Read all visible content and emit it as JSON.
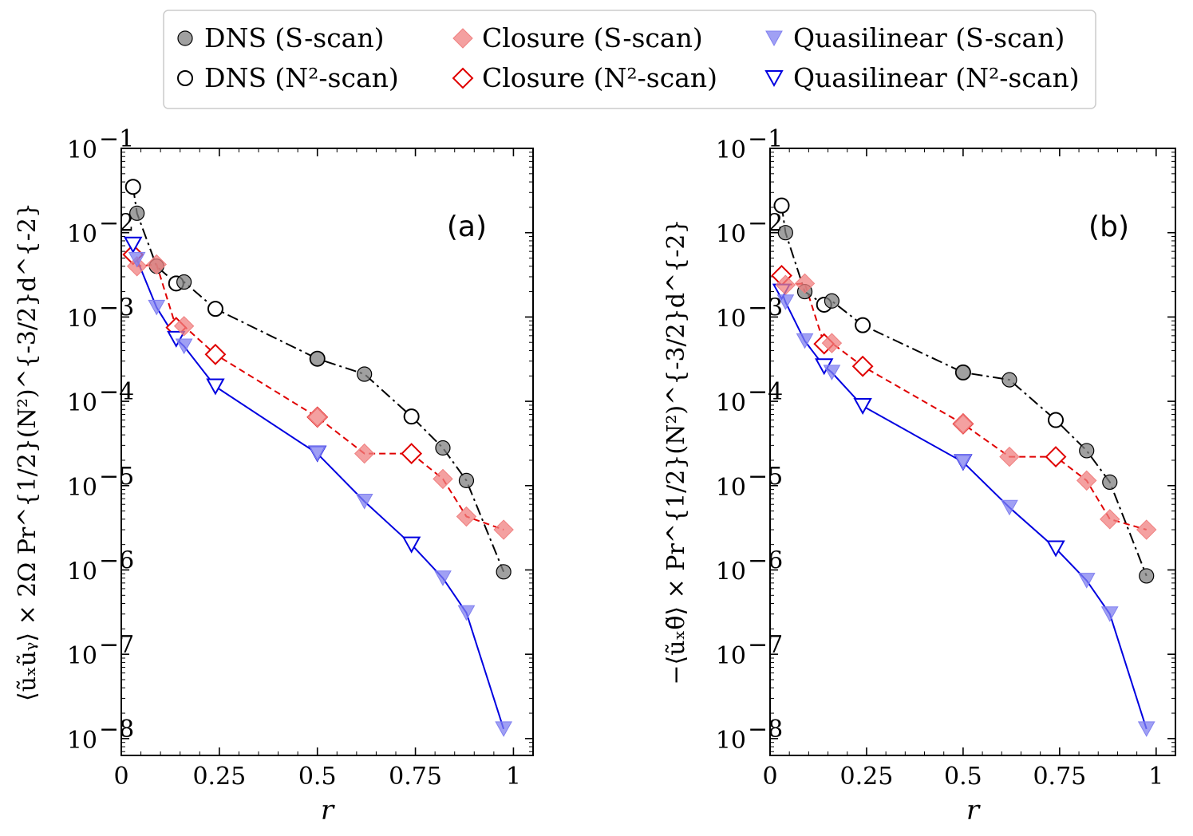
{
  "legend": [
    {
      "key": "dns_s",
      "label": "DNS (S-scan)",
      "marker": "circle",
      "filled": true,
      "color": "#808080",
      "edge": "#808080"
    },
    {
      "key": "dns_n",
      "label": "DNS (N²-scan)",
      "marker": "circle",
      "filled": false,
      "color": "#ffffff",
      "edge": "#000000"
    },
    {
      "key": "clo_s",
      "label": "Closure (S-scan)",
      "marker": "diamond",
      "filled": true,
      "color": "#f08080",
      "edge": "#f08080"
    },
    {
      "key": "clo_n",
      "label": "Closure (N²-scan)",
      "marker": "diamond",
      "filled": false,
      "color": "#ffffff",
      "edge": "#e00000"
    },
    {
      "key": "ql_s",
      "label": "Quasilinear (S-scan)",
      "marker": "triangle",
      "filled": true,
      "color": "#8080f0",
      "edge": "#8080f0"
    },
    {
      "key": "ql_n",
      "label": "Quasilinear (N²-scan)",
      "marker": "triangle",
      "filled": false,
      "color": "#ffffff",
      "edge": "#0000e0"
    }
  ],
  "colors": {
    "dns_line": "#000000",
    "closure_line": "#e00000",
    "ql_line": "#0000e0"
  },
  "chart_data": [
    {
      "type": "scatter",
      "panel_label": "(a)",
      "xlabel": "r",
      "ylabel": "⟨ũₓũᵧ⟩ × 2Ω Pr^{1/2}(N²)^{-3/2}d^{-2}",
      "xlim": [
        0,
        1.05
      ],
      "ylim_log10": [
        -8.2,
        -1
      ],
      "xticks": [
        0,
        0.25,
        0.5,
        0.75,
        1
      ],
      "xtick_labels": [
        "0",
        "0.25",
        "0.5",
        "0.75",
        "1"
      ],
      "yticks_log10": [
        -8,
        -7,
        -6,
        -5,
        -4,
        -3,
        -2,
        -1
      ],
      "ytick_labels": [
        [
          "10",
          "−8"
        ],
        [
          "10",
          "−7"
        ],
        [
          "10",
          "−6"
        ],
        [
          "10",
          "−5"
        ],
        [
          "10",
          "−4"
        ],
        [
          "10",
          "−3"
        ],
        [
          "10",
          "−2"
        ],
        [
          "10",
          "−1"
        ]
      ],
      "lines": {
        "dns": {
          "x": [
            0.03,
            0.04,
            0.09,
            0.14,
            0.16,
            0.24,
            0.5,
            0.62,
            0.74,
            0.82,
            0.88,
            0.975
          ],
          "y": [
            0.035,
            0.017,
            0.004,
            0.0025,
            0.0026,
            0.00125,
            0.00032,
            0.00021,
            6.6e-05,
            2.8e-05,
            1.15e-05,
            9.5e-07
          ]
        },
        "closure": {
          "x": [
            0.03,
            0.04,
            0.09,
            0.14,
            0.16,
            0.24,
            0.5,
            0.62,
            0.74,
            0.82,
            0.88,
            0.975
          ],
          "y": [
            0.0055,
            0.004,
            0.0042,
            0.00075,
            0.00078,
            0.00036,
            6.5e-05,
            2.4e-05,
            2.4e-05,
            1.2e-05,
            4.3e-06,
            3e-06
          ]
        },
        "ql": {
          "x": [
            0.03,
            0.04,
            0.09,
            0.14,
            0.16,
            0.24,
            0.5,
            0.62,
            0.74,
            0.82,
            0.88,
            0.975
          ],
          "y": [
            0.0072,
            0.0048,
            0.0013,
            0.00055,
            0.00045,
            0.00015,
            2.4e-05,
            6.5e-06,
            2e-06,
            8e-07,
            3.1e-07,
            1.3e-08
          ]
        }
      },
      "series": [
        {
          "key": "dns_s",
          "x": [
            0.04,
            0.09,
            0.16,
            0.5,
            0.62,
            0.82,
            0.88,
            0.975
          ],
          "y": [
            0.017,
            0.004,
            0.0026,
            0.00032,
            0.00021,
            2.8e-05,
            1.15e-05,
            9.5e-07
          ]
        },
        {
          "key": "dns_n",
          "x": [
            0.03,
            0.14,
            0.24,
            0.5,
            0.74
          ],
          "y": [
            0.035,
            0.0025,
            0.00125,
            0.00032,
            6.6e-05
          ]
        },
        {
          "key": "clo_s",
          "x": [
            0.04,
            0.09,
            0.16,
            0.5,
            0.62,
            0.82,
            0.88,
            0.975
          ],
          "y": [
            0.004,
            0.0042,
            0.00078,
            6.5e-05,
            2.4e-05,
            1.2e-05,
            4.3e-06,
            3e-06
          ]
        },
        {
          "key": "clo_n",
          "x": [
            0.03,
            0.14,
            0.24,
            0.5,
            0.74
          ],
          "y": [
            0.0055,
            0.00075,
            0.00036,
            6.5e-05,
            2.4e-05
          ]
        },
        {
          "key": "ql_s",
          "x": [
            0.04,
            0.09,
            0.16,
            0.5,
            0.62,
            0.82,
            0.88,
            0.975
          ],
          "y": [
            0.0048,
            0.0013,
            0.00045,
            2.4e-05,
            6.5e-06,
            8e-07,
            3.1e-07,
            1.3e-08
          ]
        },
        {
          "key": "ql_n",
          "x": [
            0.03,
            0.14,
            0.24,
            0.5,
            0.74
          ],
          "y": [
            0.0072,
            0.00055,
            0.00015,
            2.4e-05,
            2e-06
          ]
        }
      ]
    },
    {
      "type": "scatter",
      "panel_label": "(b)",
      "xlabel": "r",
      "ylabel": "−⟨ũₓθ̃⟩ × Pr^{1/2}(N²)^{-3/2}d^{-2}",
      "xlim": [
        0,
        1.05
      ],
      "ylim_log10": [
        -8.2,
        -1
      ],
      "xticks": [
        0,
        0.25,
        0.5,
        0.75,
        1
      ],
      "xtick_labels": [
        "0",
        "0.25",
        "0.5",
        "0.75",
        "1"
      ],
      "yticks_log10": [
        -8,
        -7,
        -6,
        -5,
        -4,
        -3,
        -2,
        -1
      ],
      "ytick_labels": [
        [
          "10",
          "−8"
        ],
        [
          "10",
          "−7"
        ],
        [
          "10",
          "−6"
        ],
        [
          "10",
          "−5"
        ],
        [
          "10",
          "−4"
        ],
        [
          "10",
          "−3"
        ],
        [
          "10",
          "−2"
        ],
        [
          "10",
          "−1"
        ]
      ],
      "lines": {
        "dns": {
          "x": [
            0.03,
            0.04,
            0.09,
            0.14,
            0.16,
            0.24,
            0.5,
            0.62,
            0.74,
            0.82,
            0.88,
            0.975
          ],
          "y": [
            0.021,
            0.01,
            0.002,
            0.0014,
            0.00155,
            0.0008,
            0.00022,
            0.00018,
            6e-05,
            2.6e-05,
            1.1e-05,
            8.5e-07
          ]
        },
        "closure": {
          "x": [
            0.03,
            0.04,
            0.09,
            0.14,
            0.16,
            0.24,
            0.5,
            0.62,
            0.74,
            0.82,
            0.88,
            0.975
          ],
          "y": [
            0.0031,
            0.0024,
            0.0025,
            0.00048,
            0.00049,
            0.00026,
            5.4e-05,
            2.2e-05,
            2.2e-05,
            1.15e-05,
            4e-06,
            3e-06
          ]
        },
        "ql": {
          "x": [
            0.03,
            0.04,
            0.09,
            0.14,
            0.16,
            0.24,
            0.5,
            0.62,
            0.74,
            0.82,
            0.88,
            0.975
          ],
          "y": [
            0.002,
            0.0015,
            0.00052,
            0.00026,
            0.00022,
            8.8e-05,
            1.9e-05,
            5.5e-06,
            1.8e-06,
            7.5e-07,
            3e-07,
            1.3e-08
          ]
        }
      },
      "series": [
        {
          "key": "dns_s",
          "x": [
            0.04,
            0.09,
            0.16,
            0.5,
            0.62,
            0.82,
            0.88,
            0.975
          ],
          "y": [
            0.01,
            0.002,
            0.00155,
            0.00022,
            0.00018,
            2.6e-05,
            1.1e-05,
            8.5e-07
          ]
        },
        {
          "key": "dns_n",
          "x": [
            0.03,
            0.14,
            0.24,
            0.5,
            0.74
          ],
          "y": [
            0.021,
            0.0014,
            0.0008,
            0.00022,
            6e-05
          ]
        },
        {
          "key": "clo_s",
          "x": [
            0.04,
            0.09,
            0.16,
            0.5,
            0.62,
            0.82,
            0.88,
            0.975
          ],
          "y": [
            0.0024,
            0.0025,
            0.00049,
            5.4e-05,
            2.2e-05,
            1.15e-05,
            4e-06,
            3e-06
          ]
        },
        {
          "key": "clo_n",
          "x": [
            0.03,
            0.14,
            0.24,
            0.5,
            0.74
          ],
          "y": [
            0.0031,
            0.00048,
            0.00026,
            5.4e-05,
            2.2e-05
          ]
        },
        {
          "key": "ql_s",
          "x": [
            0.04,
            0.09,
            0.16,
            0.5,
            0.62,
            0.82,
            0.88,
            0.975
          ],
          "y": [
            0.0015,
            0.00052,
            0.00022,
            1.9e-05,
            5.5e-06,
            7.5e-07,
            3e-07,
            1.3e-08
          ]
        },
        {
          "key": "ql_n",
          "x": [
            0.03,
            0.14,
            0.24,
            0.5,
            0.74
          ],
          "y": [
            0.002,
            0.00026,
            8.8e-05,
            1.9e-05,
            1.8e-06
          ]
        }
      ]
    }
  ]
}
